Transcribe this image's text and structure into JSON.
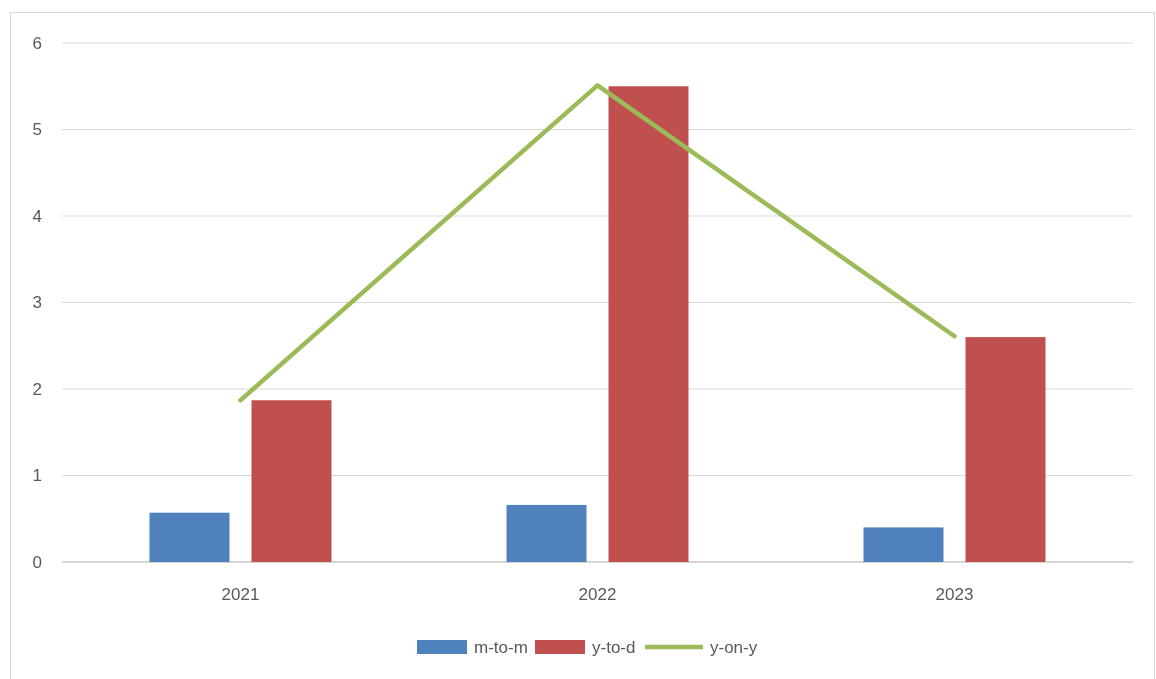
{
  "chart_data": {
    "type": "bar",
    "categories": [
      "2021",
      "2022",
      "2023"
    ],
    "series": [
      {
        "name": "m-to-m",
        "color": "#4f81bd",
        "values": [
          0.57,
          0.66,
          0.4
        ]
      },
      {
        "name": "y-to-d",
        "color": "#c0504d",
        "values": [
          1.87,
          5.5,
          2.6
        ]
      },
      {
        "name": "y-on-y",
        "type": "line",
        "color": "#9bbb59",
        "values": [
          1.87,
          5.51,
          2.61
        ]
      }
    ],
    "ylim": [
      0,
      6
    ],
    "yticks": [
      0,
      1,
      2,
      3,
      4,
      5,
      6
    ],
    "grid": "y",
    "legend": "bottom",
    "marker": "none"
  }
}
